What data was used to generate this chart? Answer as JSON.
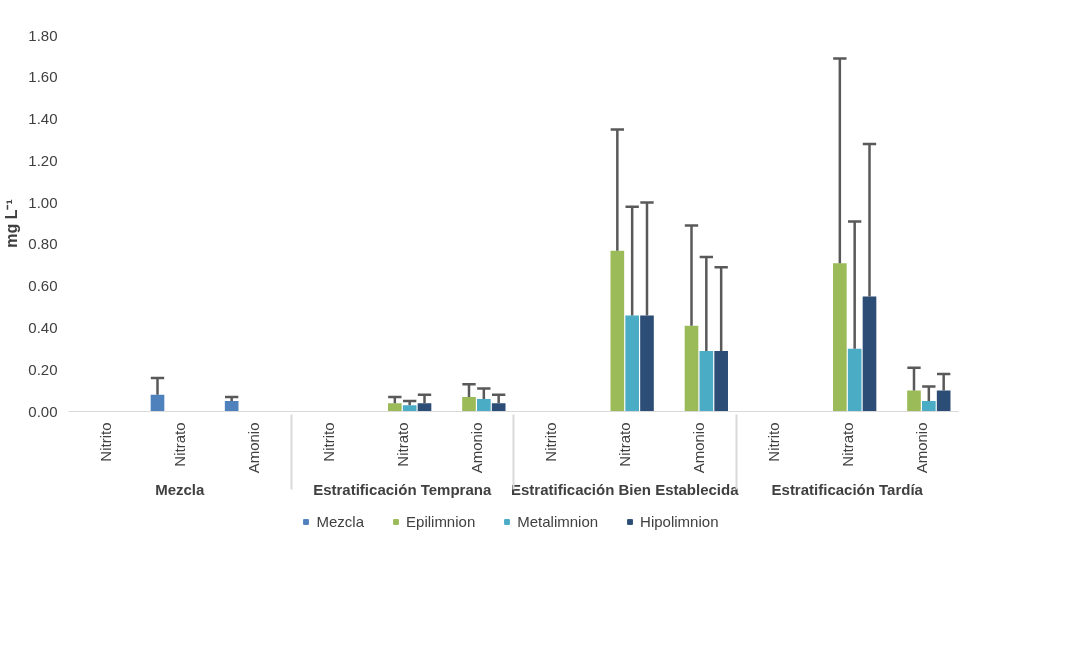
{
  "chart_data": {
    "type": "bar",
    "ylabel": "mg L⁻¹",
    "categories": [
      "Nitrito",
      "Nitrato",
      "Amonio",
      "Nitrito",
      "Nitrato",
      "Amonio",
      "Nitrito",
      "Nitrato",
      "Amonio",
      "Nitrito",
      "Nitrato",
      "Amonio"
    ],
    "annotations": [
      "Mezcla",
      "Estratificación Temprana",
      "Estratificación Bien Establecida",
      "Estratificación Tardía"
    ],
    "series": [
      {
        "name": "Mezcla",
        "color": "#4f81bd",
        "values": [
          null,
          0.08,
          0.05,
          null,
          null,
          null,
          null,
          null,
          null,
          null,
          null,
          null
        ],
        "errors": [
          null,
          [
            0.08,
            0.16
          ],
          [
            0.05,
            0.07
          ],
          null,
          null,
          null,
          null,
          null,
          null,
          null,
          null,
          null
        ]
      },
      {
        "name": "Epilimnion",
        "color": "#9bbb59",
        "values": [
          null,
          null,
          null,
          null,
          0.04,
          0.07,
          null,
          0.77,
          0.41,
          null,
          0.71,
          0.1
        ],
        "errors": [
          null,
          null,
          null,
          null,
          [
            0.04,
            0.07
          ],
          [
            0.07,
            0.13
          ],
          null,
          [
            0.77,
            1.35
          ],
          [
            0.41,
            0.89
          ],
          null,
          [
            0.71,
            1.69
          ],
          [
            0.1,
            0.21
          ]
        ]
      },
      {
        "name": "Metalimnion",
        "color": "#4bacc6",
        "values": [
          null,
          null,
          null,
          null,
          0.03,
          0.06,
          null,
          0.46,
          0.29,
          null,
          0.3,
          0.05
        ],
        "errors": [
          null,
          null,
          null,
          null,
          [
            0.03,
            0.05
          ],
          [
            0.06,
            0.11
          ],
          null,
          [
            0.46,
            0.98
          ],
          [
            0.29,
            0.74
          ],
          null,
          [
            0.3,
            0.91
          ],
          [
            0.05,
            0.12
          ]
        ]
      },
      {
        "name": "Hipolimnion",
        "color": "#2c4d75",
        "values": [
          null,
          null,
          null,
          null,
          0.04,
          0.04,
          null,
          0.46,
          0.29,
          null,
          0.55,
          0.1
        ],
        "errors": [
          null,
          null,
          null,
          null,
          [
            0.04,
            0.08
          ],
          [
            0.04,
            0.08
          ],
          null,
          [
            0.46,
            1.0
          ],
          [
            0.29,
            0.69
          ],
          null,
          [
            0.55,
            1.28
          ],
          [
            0.1,
            0.18
          ]
        ]
      }
    ],
    "ylim": [
      0,
      1.8
    ],
    "yticks": [
      {
        "value": 0,
        "label": "0.00"
      },
      {
        "value": 0.2,
        "label": "0.20"
      },
      {
        "value": 0.4,
        "label": "0.40"
      },
      {
        "value": 0.6,
        "label": "0.60"
      },
      {
        "value": 0.8,
        "label": "0.80"
      },
      {
        "value": 1.0,
        "label": "1.00"
      },
      {
        "value": 1.2,
        "label": "1.20"
      },
      {
        "value": 1.4,
        "label": "1.40"
      },
      {
        "value": 1.6,
        "label": "1.60"
      },
      {
        "value": 1.8,
        "label": "1.80"
      }
    ],
    "grid": false,
    "legend": "bottom"
  }
}
